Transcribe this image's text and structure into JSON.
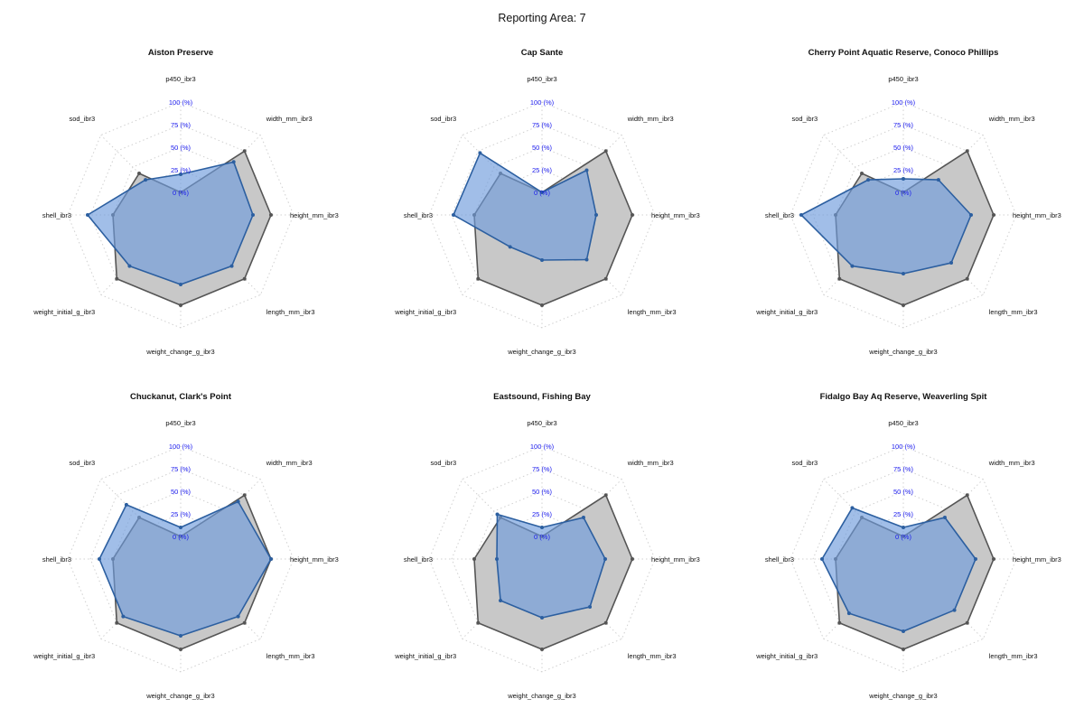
{
  "title": "Reporting Area: 7",
  "colors": {
    "reference_fill": "#c8c8c8",
    "reference_stroke": "#555555",
    "site_fill": "#6f9bdc",
    "site_stroke": "#2c5fa0",
    "grid": "#d0d0d0",
    "tick_label": "#1a1aee"
  },
  "chart_data": [
    {
      "type": "radar",
      "title": "Aiston Preserve",
      "axes": [
        "p450_ibr3",
        "width_mm_ibr3",
        "height_mm_ibr3",
        "length_mm_ibr3",
        "weight_change_g_ibr3",
        "weight_initial_g_ibr3",
        "shell_ibr3",
        "sod_ibr3"
      ],
      "ticks": [
        "0 (%)",
        "25 (%)",
        "50 (%)",
        "75 (%)",
        "100 (%)"
      ],
      "range": [
        0,
        100
      ],
      "grid": "dotted",
      "series": [
        {
          "role": "reference",
          "values": [
            0,
            75,
            75,
            75,
            75,
            75,
            50,
            40
          ]
        },
        {
          "role": "site",
          "values": [
            20,
            58,
            55,
            55,
            52,
            55,
            78,
            30
          ]
        }
      ]
    },
    {
      "type": "radar",
      "title": "Cap Sante",
      "axes": [
        "p450_ibr3",
        "width_mm_ibr3",
        "height_mm_ibr3",
        "length_mm_ibr3",
        "weight_change_g_ibr3",
        "weight_initial_g_ibr3",
        "shell_ibr3",
        "sod_ibr3"
      ],
      "ticks": [
        "0 (%)",
        "25 (%)",
        "50 (%)",
        "75 (%)",
        "100 (%)"
      ],
      "range": [
        0,
        100
      ],
      "grid": "dotted",
      "series": [
        {
          "role": "reference",
          "values": [
            0,
            75,
            75,
            75,
            75,
            75,
            50,
            40
          ]
        },
        {
          "role": "site",
          "values": [
            0,
            45,
            35,
            45,
            25,
            25,
            73,
            72
          ]
        }
      ]
    },
    {
      "type": "radar",
      "title": "Cherry Point Aquatic Reserve, Conoco Phillips",
      "axes": [
        "p450_ibr3",
        "width_mm_ibr3",
        "height_mm_ibr3",
        "length_mm_ibr3",
        "weight_change_g_ibr3",
        "weight_initial_g_ibr3",
        "shell_ibr3",
        "sod_ibr3"
      ],
      "ticks": [
        "0 (%)",
        "25 (%)",
        "50 (%)",
        "75 (%)",
        "100 (%)"
      ],
      "range": [
        0,
        100
      ],
      "grid": "dotted",
      "series": [
        {
          "role": "reference",
          "values": [
            0,
            75,
            75,
            75,
            75,
            75,
            50,
            40
          ]
        },
        {
          "role": "site",
          "values": [
            15,
            30,
            50,
            50,
            40,
            55,
            88,
            30
          ]
        }
      ]
    },
    {
      "type": "radar",
      "title": "Chuckanut, Clark's Point",
      "axes": [
        "p450_ibr3",
        "width_mm_ibr3",
        "height_mm_ibr3",
        "length_mm_ibr3",
        "weight_change_g_ibr3",
        "weight_initial_g_ibr3",
        "shell_ibr3",
        "sod_ibr3"
      ],
      "ticks": [
        "0 (%)",
        "25 (%)",
        "50 (%)",
        "75 (%)",
        "100 (%)"
      ],
      "range": [
        0,
        100
      ],
      "grid": "dotted",
      "series": [
        {
          "role": "reference",
          "values": [
            0,
            75,
            75,
            75,
            75,
            75,
            50,
            40
          ]
        },
        {
          "role": "site",
          "values": [
            10,
            65,
            75,
            65,
            60,
            65,
            65,
            60
          ]
        }
      ]
    },
    {
      "type": "radar",
      "title": "Eastsound, Fishing Bay",
      "axes": [
        "p450_ibr3",
        "width_mm_ibr3",
        "height_mm_ibr3",
        "length_mm_ibr3",
        "weight_change_g_ibr3",
        "weight_initial_g_ibr3",
        "shell_ibr3",
        "sod_ibr3"
      ],
      "ticks": [
        "0 (%)",
        "25 (%)",
        "50 (%)",
        "75 (%)",
        "100 (%)"
      ],
      "range": [
        0,
        100
      ],
      "grid": "dotted",
      "series": [
        {
          "role": "reference",
          "values": [
            0,
            75,
            75,
            75,
            75,
            75,
            50,
            40
          ]
        },
        {
          "role": "site",
          "values": [
            10,
            40,
            45,
            50,
            40,
            40,
            25,
            45
          ]
        }
      ]
    },
    {
      "type": "radar",
      "title": "Fidalgo Bay Aq Reserve, Weaverling Spit",
      "axes": [
        "p450_ibr3",
        "width_mm_ibr3",
        "height_mm_ibr3",
        "length_mm_ibr3",
        "weight_change_g_ibr3",
        "weight_initial_g_ibr3",
        "shell_ibr3",
        "sod_ibr3"
      ],
      "ticks": [
        "0 (%)",
        "25 (%)",
        "50 (%)",
        "75 (%)",
        "100 (%)"
      ],
      "range": [
        0,
        100
      ],
      "grid": "dotted",
      "series": [
        {
          "role": "reference",
          "values": [
            0,
            75,
            75,
            75,
            75,
            75,
            50,
            40
          ]
        },
        {
          "role": "site",
          "values": [
            10,
            40,
            55,
            55,
            55,
            60,
            65,
            55
          ]
        }
      ]
    }
  ]
}
